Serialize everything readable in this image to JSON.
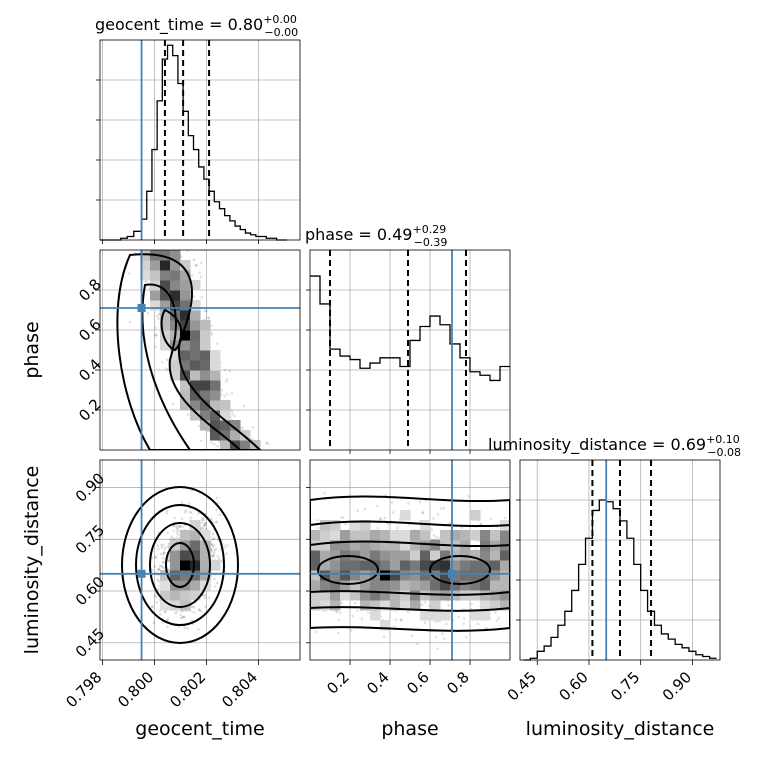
{
  "chart_data": {
    "type": "corner",
    "parameters": [
      "geocent_time",
      "phase",
      "luminosity_distance"
    ],
    "truths": {
      "geocent_time": 0.7995,
      "phase": 0.71,
      "luminosity_distance": 0.65
    },
    "titles": [
      {
        "param": "geocent_time",
        "text": "geocent_time = 0.80",
        "sup": "+0.00",
        "sub": "−0.00"
      },
      {
        "param": "phase",
        "text": "phase = 0.49",
        "sup": "+0.29",
        "sub": "−0.39"
      },
      {
        "param": "luminosity_distance",
        "text": "luminosity_distance = 0.69",
        "sup": "+0.10",
        "sub": "−0.08"
      }
    ],
    "axis_labels": {
      "geocent_time": "geocent_time",
      "phase": "phase",
      "luminosity_distance": "luminosity_distance"
    },
    "ranges": {
      "geocent_time": [
        0.7979,
        0.8056
      ],
      "phase": [
        0.0,
        1.0
      ],
      "luminosity_distance": [
        0.4,
        0.98
      ]
    },
    "ticks": {
      "geocent_time": [
        0.798,
        0.8,
        0.802,
        0.804
      ],
      "phase": [
        0.2,
        0.4,
        0.6,
        0.8
      ],
      "luminosity_distance": [
        0.45,
        0.6,
        0.75,
        0.9
      ]
    },
    "tick_labels": {
      "geocent_time": [
        "0.798",
        "0.800",
        "0.802",
        "0.804"
      ],
      "phase": [
        "0.2",
        "0.4",
        "0.6",
        "0.8"
      ],
      "luminosity_distance": [
        "0.45",
        "0.60",
        "0.75",
        "0.90"
      ]
    },
    "quantiles": {
      "geocent_time": [
        0.8004,
        0.8011,
        0.8021
      ],
      "phase": [
        0.1,
        0.49,
        0.78
      ],
      "luminosity_distance": [
        0.61,
        0.69,
        0.78
      ]
    },
    "histograms": {
      "geocent_time": {
        "bins": [
          0.7979,
          0.7983,
          0.7987,
          0.79895,
          0.7992,
          0.7995,
          0.7997,
          0.7999,
          0.8001,
          0.8003,
          0.8005,
          0.8007,
          0.8009,
          0.8011,
          0.8013,
          0.8015,
          0.8017,
          0.8019,
          0.8021,
          0.8023,
          0.8025,
          0.8027,
          0.8029,
          0.8031,
          0.8033,
          0.8035,
          0.8037,
          0.8039,
          0.8041,
          0.8043,
          0.8045,
          0.8047,
          0.8049,
          0.8051
        ],
        "counts": [
          0,
          0,
          1,
          2,
          5,
          12,
          28,
          52,
          80,
          104,
          112,
          106,
          90,
          74,
          60,
          52,
          42,
          35,
          28,
          22,
          18,
          14,
          11,
          8,
          6,
          4,
          3,
          2,
          2,
          1,
          1,
          0,
          0
        ]
      },
      "phase": {
        "bins": [
          0.0,
          0.05,
          0.1,
          0.15,
          0.2,
          0.25,
          0.3,
          0.35,
          0.4,
          0.45,
          0.5,
          0.55,
          0.6,
          0.65,
          0.7,
          0.75,
          0.8,
          0.85,
          0.9,
          0.95,
          1.0
        ],
        "counts": [
          100,
          84,
          58,
          54,
          52,
          47,
          50,
          53,
          53,
          48,
          63,
          71,
          77,
          72,
          61,
          53,
          45,
          43,
          40,
          48
        ]
      },
      "luminosity_distance": {
        "bins": [
          0.41,
          0.43,
          0.45,
          0.47,
          0.49,
          0.51,
          0.53,
          0.55,
          0.57,
          0.59,
          0.61,
          0.63,
          0.65,
          0.67,
          0.69,
          0.71,
          0.73,
          0.75,
          0.77,
          0.79,
          0.81,
          0.83,
          0.85,
          0.87,
          0.89,
          0.91,
          0.93,
          0.95,
          0.97
        ],
        "counts": [
          0,
          1,
          5,
          8,
          13,
          20,
          28,
          40,
          55,
          70,
          86,
          92,
          91,
          87,
          80,
          70,
          55,
          40,
          28,
          20,
          15,
          12,
          9,
          7,
          5,
          3,
          2,
          1
        ]
      }
    },
    "panels": [
      {
        "row": 1,
        "col": 0,
        "x": "geocent_time",
        "y": "phase"
      },
      {
        "row": 2,
        "col": 0,
        "x": "geocent_time",
        "y": "luminosity_distance"
      },
      {
        "row": 2,
        "col": 1,
        "x": "phase",
        "y": "luminosity_distance"
      }
    ],
    "contour_levels": [
      0.118,
      0.393,
      0.675,
      0.864
    ],
    "grid": true,
    "colors": {
      "truth": "#4682b4",
      "contour": "#000000",
      "histogram": "#000000"
    }
  }
}
